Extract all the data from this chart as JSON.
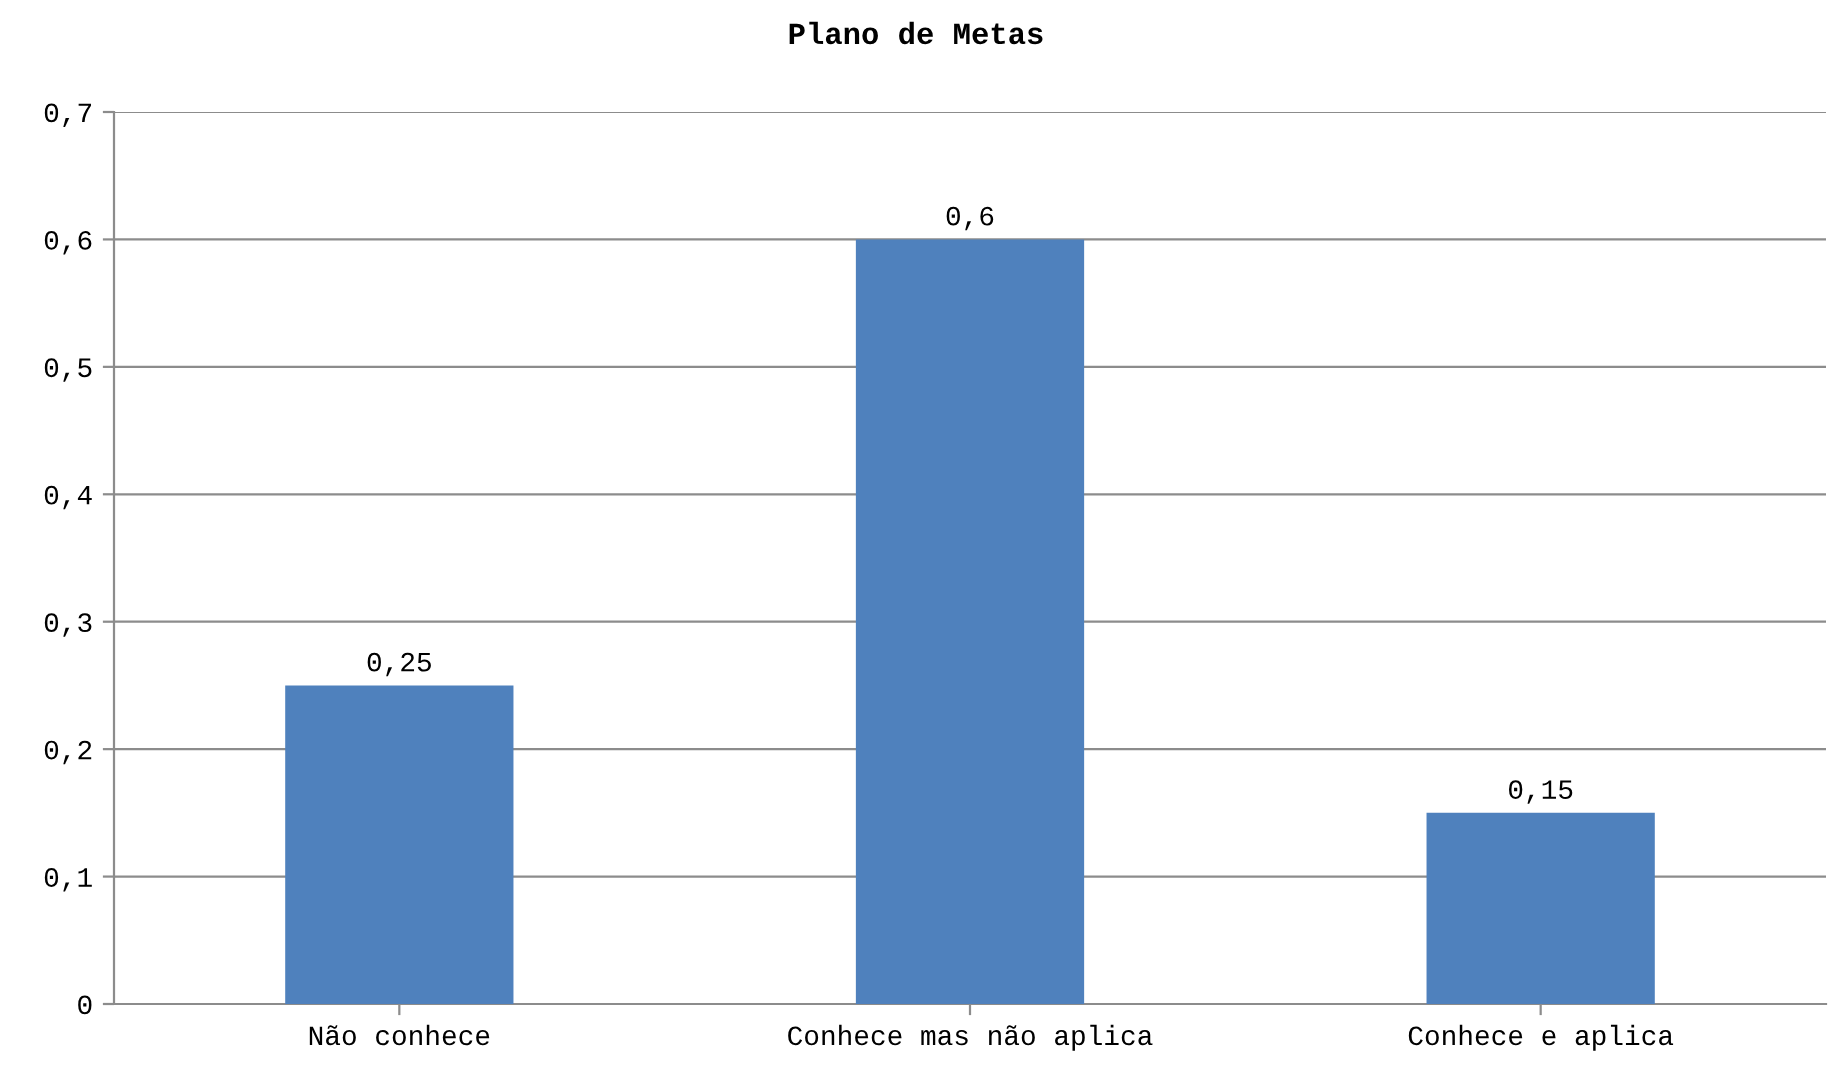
{
  "chart_data": {
    "type": "bar",
    "title": "Plano de Metas",
    "categories": [
      "Não conhece",
      "Conhece mas não aplica",
      "Conhece e aplica"
    ],
    "values": [
      0.25,
      0.6,
      0.15
    ],
    "color": "#4f81bd",
    "value_labels": [
      "0,25",
      "0,6",
      "0,15"
    ],
    "ylim": [
      0,
      0.7
    ],
    "yticks": [
      {
        "value": 0,
        "label": "0"
      },
      {
        "value": 0.1,
        "label": "0,1"
      },
      {
        "value": 0.2,
        "label": "0,2"
      },
      {
        "value": 0.3,
        "label": "0,3"
      },
      {
        "value": 0.4,
        "label": "0,4"
      },
      {
        "value": 0.5,
        "label": "0,5"
      },
      {
        "value": 0.6,
        "label": "0,6"
      },
      {
        "value": 0.7,
        "label": "0,7"
      }
    ],
    "grid": "y",
    "legend": false
  }
}
